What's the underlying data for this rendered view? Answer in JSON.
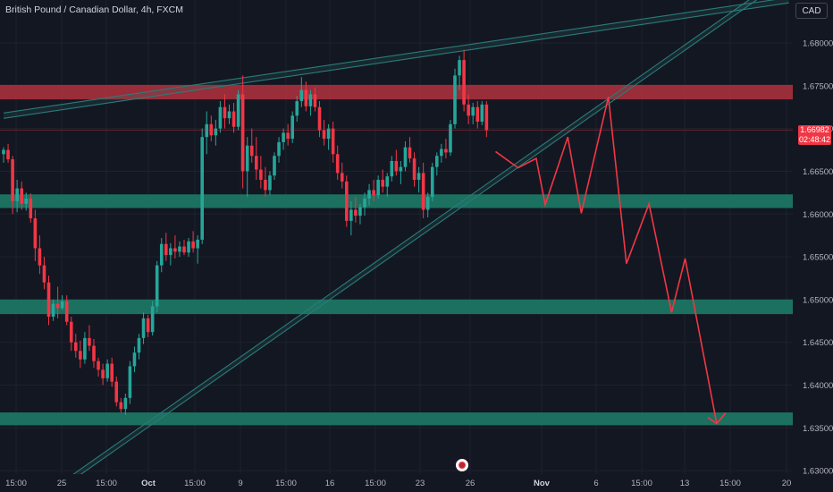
{
  "header": {
    "symbol_title": "British Pound / Canadian Dollar, 4h, FXCM",
    "currency_button": "CAD"
  },
  "price_tag": {
    "price": "1.66982",
    "countdown": "02:48:42"
  },
  "colors": {
    "background": "#131722",
    "bull": "#26a69a",
    "bear": "#f23645",
    "resistance_zone": "#b2313d",
    "support_zone": "#1e7a66",
    "trendline": "#2a7c78",
    "projection": "#f23645",
    "axis_text": "#b2b5be"
  },
  "icons": {
    "event_marker": "calendar-event-icon"
  },
  "chart_data": {
    "type": "candlestick",
    "title": "British Pound / Canadian Dollar, 4h, FXCM",
    "y_axis": {
      "ylim": [
        1.6275,
        1.6845
      ],
      "ticks": [
        "1.68000",
        "1.67500",
        "1.67000",
        "1.66500",
        "1.66000",
        "1.65500",
        "1.65000",
        "1.64500",
        "1.64000",
        "1.63500",
        "1.63000"
      ]
    },
    "x_axis": {
      "ticks": [
        "15:00",
        "25",
        "15:00",
        "Oct",
        "15:00",
        "9",
        "15:00",
        "16",
        "15:00",
        "23",
        "26",
        "Nov",
        "6",
        "15:00",
        "13",
        "15:00",
        "20"
      ],
      "bold_ticks": [
        "Oct",
        "Nov"
      ],
      "bar_range": [
        0,
        174
      ]
    },
    "grid": true,
    "last_price": 1.66982,
    "zones": [
      {
        "kind": "resistance",
        "from": 1.6734,
        "to": 1.6751
      },
      {
        "kind": "support",
        "from": 1.6607,
        "to": 1.6623
      },
      {
        "kind": "support",
        "from": 1.6483,
        "to": 1.65
      },
      {
        "kind": "support",
        "from": 1.6353,
        "to": 1.6368
      }
    ],
    "trendlines": [
      {
        "label": "upper channel",
        "points": [
          [
            0,
            1.6715
          ],
          [
            174,
            1.685
          ]
        ]
      },
      {
        "label": "rising support",
        "points": [
          [
            8,
            1.6265
          ],
          [
            174,
            1.688
          ]
        ]
      }
    ],
    "projection_path": [
      [
        109,
        1.6673
      ],
      [
        114,
        1.6654
      ],
      [
        118,
        1.6665
      ],
      [
        120,
        1.6611
      ],
      [
        125,
        1.669
      ],
      [
        128,
        1.6601
      ],
      [
        134,
        1.6737
      ],
      [
        138,
        1.6542
      ],
      [
        143,
        1.6612
      ],
      [
        148,
        1.6485
      ],
      [
        151,
        1.6548
      ],
      [
        158,
        1.6355
      ]
    ],
    "candles": [
      [
        1.667,
        1.6678,
        1.666,
        1.6675
      ],
      [
        1.6675,
        1.6682,
        1.666,
        1.6664
      ],
      [
        1.6664,
        1.6668,
        1.66,
        1.6615
      ],
      [
        1.6615,
        1.664,
        1.6602,
        1.663
      ],
      [
        1.663,
        1.6638,
        1.6605,
        1.6612
      ],
      [
        1.6612,
        1.6625,
        1.6604,
        1.6618
      ],
      [
        1.6618,
        1.6624,
        1.659,
        1.6595
      ],
      [
        1.6595,
        1.6605,
        1.6545,
        1.656
      ],
      [
        1.656,
        1.6575,
        1.653,
        1.654
      ],
      [
        1.654,
        1.655,
        1.6512,
        1.652
      ],
      [
        1.652,
        1.6528,
        1.647,
        1.648
      ],
      [
        1.648,
        1.65,
        1.6475,
        1.6495
      ],
      [
        1.6495,
        1.6515,
        1.6478,
        1.649
      ],
      [
        1.649,
        1.6505,
        1.6488,
        1.6498
      ],
      [
        1.6498,
        1.6505,
        1.647,
        1.6474
      ],
      [
        1.6474,
        1.648,
        1.644,
        1.645
      ],
      [
        1.645,
        1.646,
        1.6432,
        1.644
      ],
      [
        1.644,
        1.6452,
        1.642,
        1.643
      ],
      [
        1.643,
        1.6462,
        1.6425,
        1.6455
      ],
      [
        1.6455,
        1.647,
        1.644,
        1.6446
      ],
      [
        1.6446,
        1.6454,
        1.642,
        1.6428
      ],
      [
        1.6428,
        1.6432,
        1.641,
        1.6418
      ],
      [
        1.6418,
        1.6425,
        1.64,
        1.6408
      ],
      [
        1.6408,
        1.643,
        1.6404,
        1.6425
      ],
      [
        1.6425,
        1.6432,
        1.6398,
        1.6404
      ],
      [
        1.6404,
        1.641,
        1.6375,
        1.638
      ],
      [
        1.638,
        1.6385,
        1.6368,
        1.6372
      ],
      [
        1.6372,
        1.639,
        1.6365,
        1.6385
      ],
      [
        1.6385,
        1.6428,
        1.6378,
        1.6422
      ],
      [
        1.6422,
        1.6445,
        1.6415,
        1.6438
      ],
      [
        1.6438,
        1.646,
        1.643,
        1.6455
      ],
      [
        1.6455,
        1.6485,
        1.6448,
        1.6478
      ],
      [
        1.6478,
        1.6482,
        1.6456,
        1.6462
      ],
      [
        1.6462,
        1.6498,
        1.6458,
        1.6492
      ],
      [
        1.6492,
        1.6545,
        1.6485,
        1.654
      ],
      [
        1.654,
        1.6572,
        1.6532,
        1.6565
      ],
      [
        1.6565,
        1.6578,
        1.6545,
        1.6552
      ],
      [
        1.6552,
        1.6566,
        1.654,
        1.656
      ],
      [
        1.656,
        1.6575,
        1.6548,
        1.6556
      ],
      [
        1.6556,
        1.6568,
        1.655,
        1.6562
      ],
      [
        1.6562,
        1.657,
        1.6552,
        1.6555
      ],
      [
        1.6555,
        1.6572,
        1.655,
        1.6568
      ],
      [
        1.6568,
        1.658,
        1.6555,
        1.656
      ],
      [
        1.656,
        1.6575,
        1.6542,
        1.657
      ],
      [
        1.657,
        1.67,
        1.6565,
        1.669
      ],
      [
        1.669,
        1.672,
        1.667,
        1.6705
      ],
      [
        1.6705,
        1.6715,
        1.6685,
        1.6692
      ],
      [
        1.6692,
        1.671,
        1.668,
        1.67
      ],
      [
        1.67,
        1.6732,
        1.6695,
        1.6725
      ],
      [
        1.6725,
        1.674,
        1.67,
        1.6712
      ],
      [
        1.6712,
        1.6728,
        1.6705,
        1.672
      ],
      [
        1.672,
        1.673,
        1.6695,
        1.6702
      ],
      [
        1.6702,
        1.6745,
        1.6698,
        1.674
      ],
      [
        1.674,
        1.6762,
        1.663,
        1.665
      ],
      [
        1.665,
        1.669,
        1.662,
        1.668
      ],
      [
        1.668,
        1.67,
        1.666,
        1.6668
      ],
      [
        1.6668,
        1.669,
        1.664,
        1.6652
      ],
      [
        1.6652,
        1.6668,
        1.663,
        1.664
      ],
      [
        1.664,
        1.6655,
        1.662,
        1.6628
      ],
      [
        1.6628,
        1.665,
        1.6622,
        1.6645
      ],
      [
        1.6645,
        1.6672,
        1.664,
        1.6668
      ],
      [
        1.6668,
        1.669,
        1.666,
        1.6684
      ],
      [
        1.6684,
        1.67,
        1.6675,
        1.6695
      ],
      [
        1.6695,
        1.6705,
        1.668,
        1.6688
      ],
      [
        1.6688,
        1.672,
        1.6683,
        1.6715
      ],
      [
        1.6715,
        1.6738,
        1.6708,
        1.6732
      ],
      [
        1.6732,
        1.676,
        1.6725,
        1.6745
      ],
      [
        1.6745,
        1.6755,
        1.672,
        1.6726
      ],
      [
        1.6726,
        1.6745,
        1.6715,
        1.674
      ],
      [
        1.674,
        1.6748,
        1.672,
        1.6725
      ],
      [
        1.6725,
        1.6732,
        1.669,
        1.6698
      ],
      [
        1.6698,
        1.671,
        1.668,
        1.6688
      ],
      [
        1.6688,
        1.6705,
        1.6675,
        1.67
      ],
      [
        1.67,
        1.6708,
        1.666,
        1.667
      ],
      [
        1.667,
        1.668,
        1.664,
        1.6648
      ],
      [
        1.6648,
        1.666,
        1.663,
        1.6638
      ],
      [
        1.6638,
        1.6645,
        1.6585,
        1.6592
      ],
      [
        1.6592,
        1.6615,
        1.6575,
        1.6605
      ],
      [
        1.6605,
        1.662,
        1.659,
        1.6598
      ],
      [
        1.6598,
        1.6612,
        1.6588,
        1.6608
      ],
      [
        1.6608,
        1.6625,
        1.6598,
        1.6618
      ],
      [
        1.6618,
        1.6635,
        1.661,
        1.6628
      ],
      [
        1.6628,
        1.664,
        1.6615,
        1.6622
      ],
      [
        1.6622,
        1.6645,
        1.6618,
        1.664
      ],
      [
        1.664,
        1.6652,
        1.6625,
        1.6632
      ],
      [
        1.6632,
        1.6648,
        1.662,
        1.6644
      ],
      [
        1.6644,
        1.6668,
        1.6638,
        1.6662
      ],
      [
        1.6662,
        1.6675,
        1.6645,
        1.665
      ],
      [
        1.665,
        1.6662,
        1.6635,
        1.6655
      ],
      [
        1.6655,
        1.6685,
        1.665,
        1.6678
      ],
      [
        1.6678,
        1.669,
        1.666,
        1.6665
      ],
      [
        1.6665,
        1.6672,
        1.6632,
        1.664
      ],
      [
        1.664,
        1.6655,
        1.6625,
        1.6648
      ],
      [
        1.6648,
        1.666,
        1.6595,
        1.6605
      ],
      [
        1.6605,
        1.6625,
        1.6596,
        1.662
      ],
      [
        1.662,
        1.666,
        1.6615,
        1.6655
      ],
      [
        1.6655,
        1.6672,
        1.6645,
        1.6668
      ],
      [
        1.6668,
        1.6682,
        1.666,
        1.6676
      ],
      [
        1.6676,
        1.6688,
        1.6665,
        1.6672
      ],
      [
        1.6672,
        1.671,
        1.6668,
        1.6705
      ],
      [
        1.6705,
        1.677,
        1.67,
        1.6762
      ],
      [
        1.6762,
        1.6785,
        1.6745,
        1.678
      ],
      [
        1.678,
        1.6792,
        1.672,
        1.6728
      ],
      [
        1.6728,
        1.674,
        1.6705,
        1.6715
      ],
      [
        1.6715,
        1.673,
        1.6705,
        1.6725
      ],
      [
        1.6725,
        1.6732,
        1.67,
        1.6708
      ],
      [
        1.6708,
        1.6732,
        1.6704,
        1.6728
      ],
      [
        1.6728,
        1.6732,
        1.669,
        1.6698
      ]
    ]
  },
  "axis": {
    "y_ticks": [
      "1.68000",
      "1.67500",
      "1.67000",
      "1.66500",
      "1.66000",
      "1.65500",
      "1.65000",
      "1.64500",
      "1.64000",
      "1.63500",
      "1.63000"
    ],
    "x_ticks": [
      "15:00",
      "25",
      "15:00",
      "Oct",
      "15:00",
      "9",
      "15:00",
      "16",
      "15:00",
      "23",
      "26",
      "Nov",
      "6",
      "15:00",
      "13",
      "15:00",
      "20"
    ]
  }
}
